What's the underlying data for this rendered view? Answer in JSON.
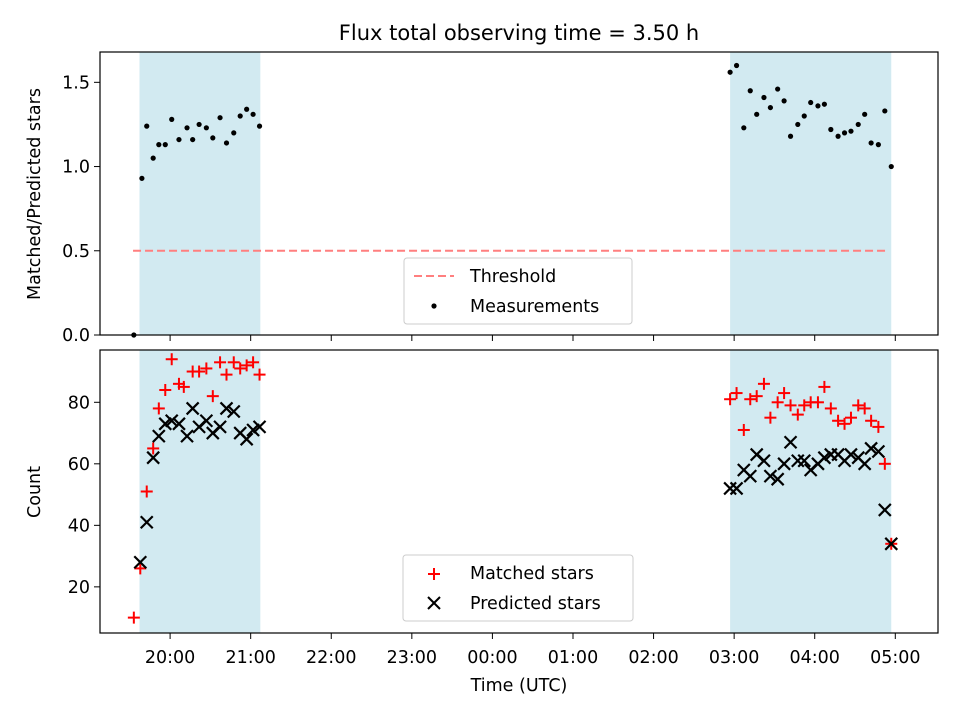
{
  "chart_data": [
    {
      "type": "scatter",
      "title": "Flux total observing time = 3.50 h",
      "ylabel": "Matched/Predicted stars",
      "xlabel": "",
      "ylim": [
        0,
        1.68
      ],
      "yticks": [
        0.0,
        0.5,
        1.0,
        1.5
      ],
      "ytick_labels": [
        "0.0",
        "0.5",
        "1.0",
        "1.5"
      ],
      "grid": false,
      "legend_position": "bottom-center",
      "shaded_intervals": [
        [
          19.62,
          21.12
        ],
        [
          26.95,
          28.95
        ]
      ],
      "shade_color": "#add8e6",
      "threshold": {
        "name": "Threshold",
        "y": 0.5,
        "x": [
          19.54,
          28.92
        ],
        "color": "#ff7f7f",
        "style": "dashed"
      },
      "series": [
        {
          "name": "Measurements",
          "marker": "dot",
          "color": "#000000",
          "x": [
            19.55,
            19.65,
            19.71,
            19.79,
            19.86,
            19.94,
            20.02,
            20.11,
            20.21,
            20.28,
            20.36,
            20.45,
            20.53,
            20.62,
            20.7,
            20.79,
            20.87,
            20.95,
            21.03,
            21.11,
            26.95,
            27.03,
            27.12,
            27.2,
            27.28,
            27.37,
            27.45,
            27.54,
            27.62,
            27.7,
            27.79,
            27.87,
            27.95,
            28.04,
            28.12,
            28.2,
            28.29,
            28.37,
            28.45,
            28.54,
            28.62,
            28.7,
            28.79,
            28.87,
            28.95
          ],
          "y": [
            0.0,
            0.93,
            1.24,
            1.05,
            1.13,
            1.13,
            1.28,
            1.16,
            1.23,
            1.16,
            1.25,
            1.23,
            1.17,
            1.29,
            1.14,
            1.2,
            1.3,
            1.34,
            1.31,
            1.24,
            1.56,
            1.6,
            1.23,
            1.45,
            1.31,
            1.41,
            1.35,
            1.46,
            1.39,
            1.18,
            1.25,
            1.3,
            1.38,
            1.36,
            1.37,
            1.22,
            1.18,
            1.2,
            1.21,
            1.25,
            1.31,
            1.14,
            1.13,
            1.33,
            1.0
          ]
        }
      ]
    },
    {
      "type": "scatter",
      "title": "",
      "ylabel": "Count",
      "xlabel": "Time (UTC)",
      "ylim": [
        5,
        97
      ],
      "yticks": [
        20,
        40,
        60,
        80
      ],
      "ytick_labels": [
        "20",
        "40",
        "60",
        "80"
      ],
      "xlim": [
        19.13,
        29.53
      ],
      "xticks": [
        20,
        21,
        22,
        23,
        24,
        25,
        26,
        27,
        28,
        29
      ],
      "xtick_labels": [
        "20:00",
        "21:00",
        "22:00",
        "23:00",
        "00:00",
        "01:00",
        "02:00",
        "03:00",
        "04:00",
        "05:00"
      ],
      "grid": false,
      "legend_position": "bottom-center",
      "shaded_intervals": [
        [
          19.62,
          21.12
        ],
        [
          26.95,
          28.95
        ]
      ],
      "shade_color": "#add8e6",
      "series": [
        {
          "name": "Matched stars",
          "marker": "plus",
          "color": "#ff0000",
          "x": [
            19.55,
            19.63,
            19.71,
            19.79,
            19.86,
            19.94,
            20.02,
            20.11,
            20.17,
            20.28,
            20.36,
            20.45,
            20.53,
            20.62,
            20.7,
            20.79,
            20.87,
            20.95,
            21.03,
            21.11,
            26.95,
            27.03,
            27.12,
            27.2,
            27.28,
            27.37,
            27.45,
            27.54,
            27.62,
            27.7,
            27.79,
            27.87,
            27.95,
            28.04,
            28.12,
            28.2,
            28.29,
            28.37,
            28.45,
            28.54,
            28.62,
            28.7,
            28.79,
            28.87,
            28.95
          ],
          "y": [
            10,
            26,
            51,
            65,
            78,
            84,
            94,
            86,
            85,
            90,
            90,
            91,
            82,
            93,
            89,
            93,
            91,
            92,
            93,
            89,
            81,
            83,
            71,
            81,
            82,
            86,
            75,
            80,
            83,
            79,
            76,
            79,
            80,
            80,
            85,
            78,
            74,
            73,
            75,
            79,
            78,
            74,
            72,
            60,
            34
          ]
        },
        {
          "name": "Predicted stars",
          "marker": "x",
          "color": "#000000",
          "x": [
            19.63,
            19.71,
            19.79,
            19.86,
            19.94,
            20.02,
            20.11,
            20.21,
            20.28,
            20.36,
            20.45,
            20.53,
            20.62,
            20.7,
            20.79,
            20.87,
            20.95,
            21.03,
            21.11,
            26.95,
            27.03,
            27.12,
            27.2,
            27.28,
            27.37,
            27.45,
            27.54,
            27.62,
            27.7,
            27.79,
            27.87,
            27.95,
            28.04,
            28.12,
            28.2,
            28.29,
            28.37,
            28.45,
            28.54,
            28.62,
            28.7,
            28.79,
            28.87,
            28.95
          ],
          "y": [
            28,
            41,
            62,
            69,
            73,
            74,
            73,
            69,
            78,
            72,
            74,
            70,
            72,
            78,
            77,
            70,
            68,
            71,
            72,
            52,
            52,
            58,
            56,
            63,
            61,
            56,
            55,
            60,
            67,
            61,
            61,
            58,
            60,
            62,
            63,
            63,
            61,
            63,
            62,
            60,
            65,
            64,
            45,
            34
          ]
        }
      ]
    }
  ]
}
